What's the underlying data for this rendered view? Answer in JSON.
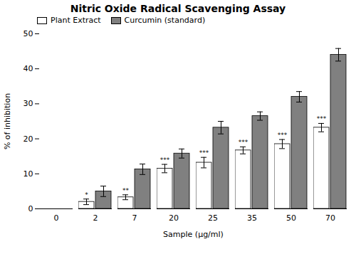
{
  "chart_data": {
    "type": "bar",
    "title": "Nitric Oxide Radical Scavenging Assay",
    "xlabel": "Sample (μg/ml)",
    "ylabel": "% of inhibition",
    "categories": [
      0,
      2,
      7,
      20,
      25,
      35,
      50,
      70
    ],
    "series": [
      {
        "name": "Plant Extract",
        "color": "#ffffff",
        "values": [
          0,
          2.0,
          3.3,
          11.5,
          13.2,
          16.7,
          18.5,
          23.2
        ],
        "errors": [
          0,
          0.8,
          0.7,
          1.2,
          1.5,
          1.0,
          1.3,
          1.2
        ],
        "labels": [
          null,
          "*",
          "**",
          "***",
          "***",
          "***",
          "***",
          "***"
        ]
      },
      {
        "name": "Curcumin (standard)",
        "color": "#808080",
        "values": [
          0,
          5.0,
          11.3,
          15.8,
          23.2,
          26.5,
          32.0,
          44.0
        ],
        "errors": [
          0,
          1.5,
          1.5,
          1.3,
          1.8,
          1.2,
          1.5,
          1.8
        ]
      }
    ],
    "ylim": [
      0,
      50
    ],
    "yticks": [
      0,
      10,
      20,
      30,
      40,
      50
    ],
    "grid": false,
    "legend": "upper left"
  }
}
